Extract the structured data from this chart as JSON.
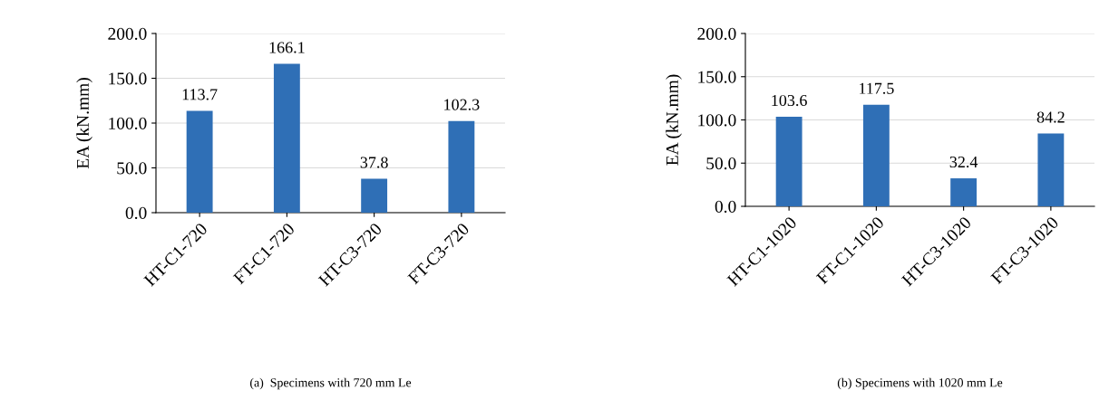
{
  "chart_data": [
    {
      "type": "bar",
      "ylabel": "EA (kN.mm)",
      "categories": [
        "HT-C1-720",
        "FT-C1-720",
        "HT-C3-720",
        "FT-C3-720"
      ],
      "values": [
        113.7,
        166.1,
        37.8,
        102.3
      ],
      "color": "#2f6fb6",
      "ylim": [
        0,
        200
      ],
      "yticks": [
        {
          "value": 0,
          "label": "0.0"
        },
        {
          "value": 50,
          "label": "50.0"
        },
        {
          "value": 100,
          "label": "100.0"
        },
        {
          "value": 150,
          "label": "150.0"
        },
        {
          "value": 200,
          "label": "200.0"
        }
      ],
      "grid": "y",
      "data_labels": true,
      "annotations": [
        "(a)  Specimens with 720 mm Le"
      ]
    },
    {
      "type": "bar",
      "ylabel": "EA (kN.mm)",
      "categories": [
        "HT-C1-1020",
        "FT-C1-1020",
        "HT-C3-1020",
        "FT-C3-1020"
      ],
      "values": [
        103.6,
        117.5,
        32.4,
        84.2
      ],
      "color": "#2f6fb6",
      "ylim": [
        0,
        200
      ],
      "yticks": [
        {
          "value": 0,
          "label": "0.0"
        },
        {
          "value": 50,
          "label": "50.0"
        },
        {
          "value": 100,
          "label": "100.0"
        },
        {
          "value": 150,
          "label": "150.0"
        },
        {
          "value": 200,
          "label": "200.0"
        }
      ],
      "grid": "y",
      "data_labels": true,
      "annotations": [
        "(b) Specimens with 1020 mm Le"
      ]
    }
  ]
}
